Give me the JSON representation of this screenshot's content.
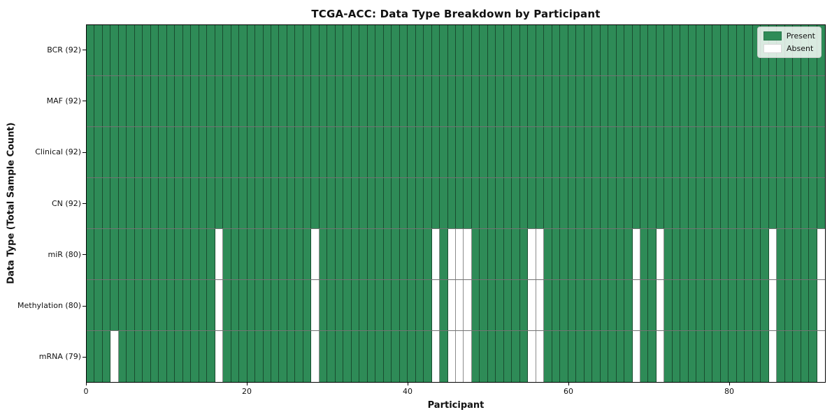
{
  "title": "TCGA-ACC: Data Type Breakdown by Participant",
  "xlabel": "Participant",
  "ylabel": "Data Type (Total Sample Count)",
  "legend": {
    "present": "Present",
    "absent": "Absent"
  },
  "colors": {
    "present": "#2e8b57",
    "absent": "#ffffff",
    "cell_edge": "rgba(0,0,0,0.45)",
    "frame": "#000000",
    "legend_border": "#cccccc"
  },
  "chart_data": {
    "type": "heatmap",
    "title": "TCGA-ACC: Data Type Breakdown by Participant",
    "xlabel": "Participant",
    "ylabel": "Data Type (Total Sample Count)",
    "x_ticks": [
      0,
      20,
      40,
      60,
      80
    ],
    "xlim": [
      0,
      92
    ],
    "n_participants": 92,
    "legend_entries": [
      "Present",
      "Absent"
    ],
    "legend_position": "upper right",
    "grid": false,
    "rows": [
      {
        "label": "BCR (92)",
        "data_type": "BCR",
        "present_count": 92,
        "absent_participants": []
      },
      {
        "label": "MAF (92)",
        "data_type": "MAF",
        "present_count": 92,
        "absent_participants": []
      },
      {
        "label": "Clinical (92)",
        "data_type": "Clinical",
        "present_count": 92,
        "absent_participants": []
      },
      {
        "label": "CN (92)",
        "data_type": "CN",
        "present_count": 92,
        "absent_participants": []
      },
      {
        "label": "miR (80)",
        "data_type": "miR",
        "present_count": 80,
        "absent_participants": [
          16,
          28,
          43,
          45,
          46,
          47,
          55,
          56,
          68,
          71,
          85,
          91
        ]
      },
      {
        "label": "Methylation (80)",
        "data_type": "Methylation",
        "present_count": 80,
        "absent_participants": [
          16,
          28,
          43,
          45,
          46,
          47,
          55,
          56,
          68,
          71,
          85,
          91
        ]
      },
      {
        "label": "mRNA (79)",
        "data_type": "mRNA",
        "present_count": 79,
        "absent_participants": [
          3,
          16,
          28,
          43,
          45,
          46,
          47,
          55,
          56,
          68,
          71,
          85,
          91
        ]
      }
    ]
  }
}
